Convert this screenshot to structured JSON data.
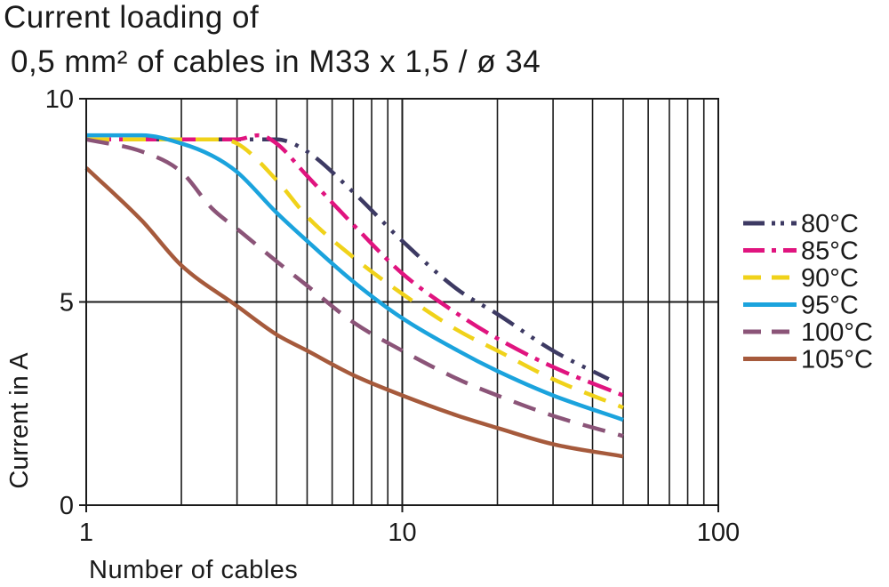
{
  "chart_data": {
    "type": "line",
    "title_line1": "Current loading of",
    "title_line2": "0,5 mm² of cables in M33 x 1,5 / ø 34",
    "xlabel": "Number of cables",
    "ylabel": "Current in A",
    "x_scale": "log",
    "xlim": [
      1,
      100
    ],
    "ylim": [
      0,
      10
    ],
    "x_ticks": [
      1,
      10,
      100
    ],
    "x_tick_labels": [
      "1",
      "10",
      "100"
    ],
    "y_ticks": [
      0,
      5,
      10
    ],
    "y_tick_labels": [
      "0",
      "5",
      "10"
    ],
    "grid": true,
    "legend_position": "right",
    "series": [
      {
        "name": "80°C",
        "color": "#3d3a63",
        "dash": "dash-dot-dot",
        "x": [
          1,
          2,
          3,
          4,
          5,
          7,
          10,
          15,
          20,
          30,
          45
        ],
        "y": [
          9.0,
          9.0,
          9.0,
          9.0,
          8.7,
          7.7,
          6.5,
          5.3,
          4.7,
          3.8,
          3.1
        ]
      },
      {
        "name": "85°C",
        "color": "#e0147f",
        "dash": "dash-dot",
        "x": [
          1,
          2,
          3,
          3.5,
          4,
          5,
          7,
          10,
          15,
          20,
          30,
          50
        ],
        "y": [
          9.0,
          9.0,
          9.0,
          9.1,
          8.9,
          8.1,
          6.9,
          5.7,
          4.7,
          4.1,
          3.4,
          2.7
        ]
      },
      {
        "name": "90°C",
        "color": "#f0d21a",
        "dash": "dash",
        "x": [
          1,
          2,
          2.5,
          3,
          4,
          5,
          7,
          10,
          15,
          20,
          30,
          50
        ],
        "y": [
          9.0,
          9.0,
          9.0,
          8.9,
          8.0,
          7.1,
          6.1,
          5.2,
          4.3,
          3.8,
          3.1,
          2.4
        ]
      },
      {
        "name": "95°C",
        "color": "#1ba3dd",
        "dash": "solid",
        "x": [
          1,
          1.5,
          2,
          2.5,
          3,
          4,
          5,
          7,
          10,
          15,
          20,
          30,
          50
        ],
        "y": [
          9.1,
          9.1,
          8.9,
          8.6,
          8.2,
          7.2,
          6.5,
          5.5,
          4.6,
          3.8,
          3.3,
          2.7,
          2.1
        ]
      },
      {
        "name": "100°C",
        "color": "#8b5478",
        "dash": "dash",
        "x": [
          1,
          1.5,
          2,
          2.5,
          3,
          4,
          5,
          7,
          10,
          15,
          20,
          30,
          50
        ],
        "y": [
          9.0,
          8.7,
          8.2,
          7.3,
          6.8,
          6.0,
          5.4,
          4.5,
          3.8,
          3.1,
          2.7,
          2.2,
          1.7
        ]
      },
      {
        "name": "105°C",
        "color": "#a65a3c",
        "dash": "solid",
        "x": [
          1,
          1.5,
          2,
          3,
          4,
          5,
          7,
          10,
          15,
          20,
          30,
          50
        ],
        "y": [
          8.3,
          7.0,
          5.9,
          4.9,
          4.2,
          3.8,
          3.2,
          2.7,
          2.2,
          1.9,
          1.5,
          1.2
        ]
      }
    ]
  }
}
